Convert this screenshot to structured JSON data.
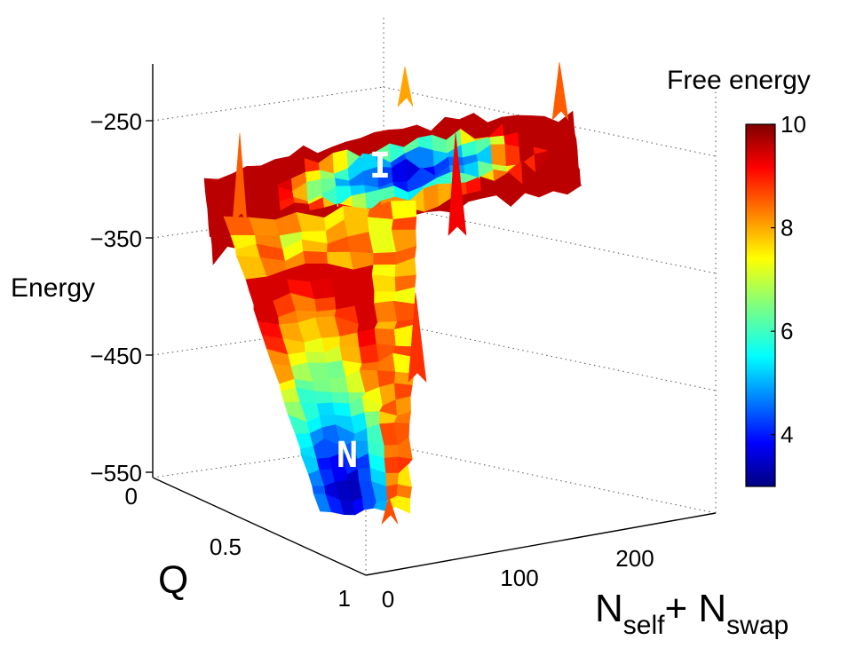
{
  "chart_data": {
    "type": "surface3d",
    "title": "",
    "colorbar": {
      "label": "Free energy",
      "range": [
        3,
        10
      ],
      "ticks": [
        4,
        6,
        8,
        10
      ],
      "colormap": "jet"
    },
    "axes": {
      "z": {
        "label": "Energy",
        "ticks": [
          -250,
          -350,
          -450,
          -550
        ],
        "range": [
          -570,
          -200
        ]
      },
      "q": {
        "label": "Q",
        "ticks": [
          0,
          0.5,
          1
        ],
        "range": [
          0,
          1
        ]
      },
      "n": {
        "label_main": "N",
        "label_sub1": "self",
        "label_plus": "+ N",
        "label_sub2": "swap",
        "ticks": [
          0,
          100,
          200
        ],
        "range": [
          0,
          300
        ]
      }
    },
    "annotations": [
      {
        "label": "I",
        "q": 0.25,
        "n": 150,
        "energy": -285
      },
      {
        "label": "N",
        "q": 0.8,
        "n": 20,
        "energy": -530
      }
    ],
    "surface": {
      "minima": [
        {
          "state": "I",
          "free_energy": 3.5
        },
        {
          "state": "N",
          "free_energy": 3.2
        }
      ],
      "free_energy_range": [
        3,
        10
      ]
    }
  }
}
